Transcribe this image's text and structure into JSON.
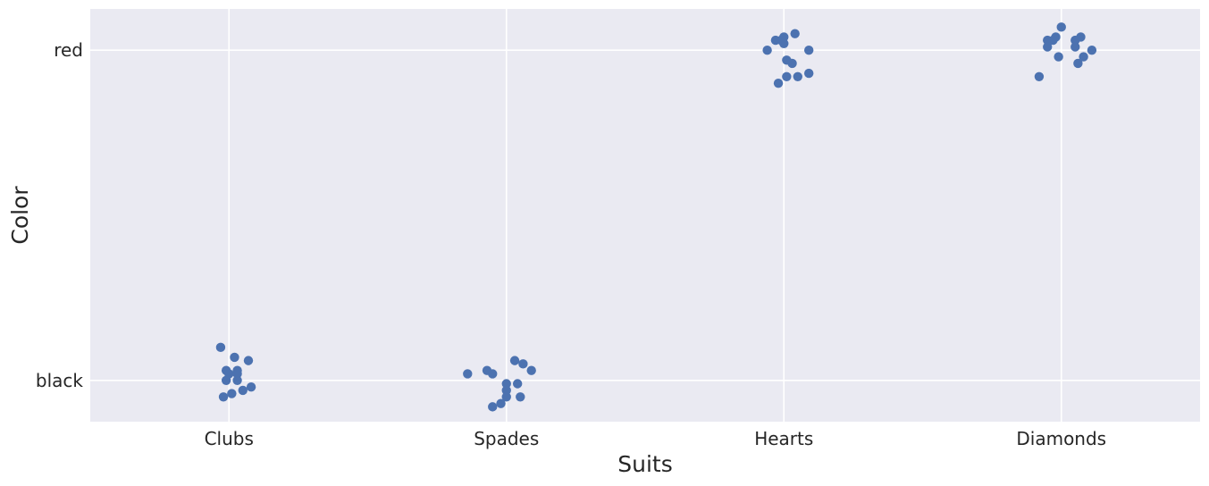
{
  "chart_data": {
    "type": "scatter",
    "subtype": "strip",
    "title": "",
    "xlabel": "Suits",
    "ylabel": "Color",
    "categories": [
      "Clubs",
      "Spades",
      "Hearts",
      "Diamonds"
    ],
    "y_categories": [
      "black",
      "red"
    ],
    "grid": true,
    "legend": "none",
    "colors": {
      "background": "#eaeaf2",
      "grid": "#ffffff",
      "point": "#4c72b0",
      "text": "#262626"
    },
    "points": [
      {
        "x": "Clubs",
        "y": "black",
        "x_jitter": -0.03,
        "y_jitter": 0.1
      },
      {
        "x": "Clubs",
        "y": "black",
        "x_jitter": 0.02,
        "y_jitter": 0.07
      },
      {
        "x": "Clubs",
        "y": "black",
        "x_jitter": 0.07,
        "y_jitter": 0.06
      },
      {
        "x": "Clubs",
        "y": "black",
        "x_jitter": -0.01,
        "y_jitter": 0.03
      },
      {
        "x": "Clubs",
        "y": "black",
        "x_jitter": 0.03,
        "y_jitter": 0.03
      },
      {
        "x": "Clubs",
        "y": "black",
        "x_jitter": 0.0,
        "y_jitter": 0.02
      },
      {
        "x": "Clubs",
        "y": "black",
        "x_jitter": 0.03,
        "y_jitter": 0.02
      },
      {
        "x": "Clubs",
        "y": "black",
        "x_jitter": -0.01,
        "y_jitter": 0.0
      },
      {
        "x": "Clubs",
        "y": "black",
        "x_jitter": 0.03,
        "y_jitter": 0.0
      },
      {
        "x": "Clubs",
        "y": "black",
        "x_jitter": 0.08,
        "y_jitter": -0.02
      },
      {
        "x": "Clubs",
        "y": "black",
        "x_jitter": 0.05,
        "y_jitter": -0.03
      },
      {
        "x": "Clubs",
        "y": "black",
        "x_jitter": 0.01,
        "y_jitter": -0.04
      },
      {
        "x": "Clubs",
        "y": "black",
        "x_jitter": -0.02,
        "y_jitter": -0.05
      },
      {
        "x": "Spades",
        "y": "black",
        "x_jitter": -0.14,
        "y_jitter": 0.02
      },
      {
        "x": "Spades",
        "y": "black",
        "x_jitter": -0.07,
        "y_jitter": 0.03
      },
      {
        "x": "Spades",
        "y": "black",
        "x_jitter": -0.05,
        "y_jitter": 0.02
      },
      {
        "x": "Spades",
        "y": "black",
        "x_jitter": 0.03,
        "y_jitter": 0.06
      },
      {
        "x": "Spades",
        "y": "black",
        "x_jitter": 0.06,
        "y_jitter": 0.05
      },
      {
        "x": "Spades",
        "y": "black",
        "x_jitter": 0.09,
        "y_jitter": 0.03
      },
      {
        "x": "Spades",
        "y": "black",
        "x_jitter": 0.0,
        "y_jitter": -0.01
      },
      {
        "x": "Spades",
        "y": "black",
        "x_jitter": 0.04,
        "y_jitter": -0.01
      },
      {
        "x": "Spades",
        "y": "black",
        "x_jitter": 0.0,
        "y_jitter": -0.03
      },
      {
        "x": "Spades",
        "y": "black",
        "x_jitter": 0.0,
        "y_jitter": -0.05
      },
      {
        "x": "Spades",
        "y": "black",
        "x_jitter": 0.05,
        "y_jitter": -0.05
      },
      {
        "x": "Spades",
        "y": "black",
        "x_jitter": -0.02,
        "y_jitter": -0.07
      },
      {
        "x": "Spades",
        "y": "black",
        "x_jitter": -0.05,
        "y_jitter": -0.08
      },
      {
        "x": "Hearts",
        "y": "red",
        "x_jitter": 0.04,
        "y_jitter": 0.05
      },
      {
        "x": "Hearts",
        "y": "red",
        "x_jitter": 0.0,
        "y_jitter": 0.04
      },
      {
        "x": "Hearts",
        "y": "red",
        "x_jitter": -0.03,
        "y_jitter": 0.03
      },
      {
        "x": "Hearts",
        "y": "red",
        "x_jitter": -0.01,
        "y_jitter": 0.03
      },
      {
        "x": "Hearts",
        "y": "red",
        "x_jitter": 0.0,
        "y_jitter": 0.02
      },
      {
        "x": "Hearts",
        "y": "red",
        "x_jitter": -0.06,
        "y_jitter": 0.0
      },
      {
        "x": "Hearts",
        "y": "red",
        "x_jitter": 0.09,
        "y_jitter": 0.0
      },
      {
        "x": "Hearts",
        "y": "red",
        "x_jitter": 0.01,
        "y_jitter": -0.03
      },
      {
        "x": "Hearts",
        "y": "red",
        "x_jitter": 0.03,
        "y_jitter": -0.04
      },
      {
        "x": "Hearts",
        "y": "red",
        "x_jitter": 0.09,
        "y_jitter": -0.07
      },
      {
        "x": "Hearts",
        "y": "red",
        "x_jitter": 0.01,
        "y_jitter": -0.08
      },
      {
        "x": "Hearts",
        "y": "red",
        "x_jitter": 0.05,
        "y_jitter": -0.08
      },
      {
        "x": "Hearts",
        "y": "red",
        "x_jitter": -0.02,
        "y_jitter": -0.1
      },
      {
        "x": "Diamonds",
        "y": "red",
        "x_jitter": 0.0,
        "y_jitter": 0.07
      },
      {
        "x": "Diamonds",
        "y": "red",
        "x_jitter": 0.07,
        "y_jitter": 0.04
      },
      {
        "x": "Diamonds",
        "y": "red",
        "x_jitter": -0.02,
        "y_jitter": 0.04
      },
      {
        "x": "Diamonds",
        "y": "red",
        "x_jitter": -0.05,
        "y_jitter": 0.03
      },
      {
        "x": "Diamonds",
        "y": "red",
        "x_jitter": -0.03,
        "y_jitter": 0.03
      },
      {
        "x": "Diamonds",
        "y": "red",
        "x_jitter": 0.05,
        "y_jitter": 0.03
      },
      {
        "x": "Diamonds",
        "y": "red",
        "x_jitter": -0.05,
        "y_jitter": 0.01
      },
      {
        "x": "Diamonds",
        "y": "red",
        "x_jitter": 0.05,
        "y_jitter": 0.01
      },
      {
        "x": "Diamonds",
        "y": "red",
        "x_jitter": 0.11,
        "y_jitter": 0.0
      },
      {
        "x": "Diamonds",
        "y": "red",
        "x_jitter": -0.01,
        "y_jitter": -0.02
      },
      {
        "x": "Diamonds",
        "y": "red",
        "x_jitter": 0.08,
        "y_jitter": -0.02
      },
      {
        "x": "Diamonds",
        "y": "red",
        "x_jitter": 0.06,
        "y_jitter": -0.04
      },
      {
        "x": "Diamonds",
        "y": "red",
        "x_jitter": -0.08,
        "y_jitter": -0.08
      }
    ]
  }
}
